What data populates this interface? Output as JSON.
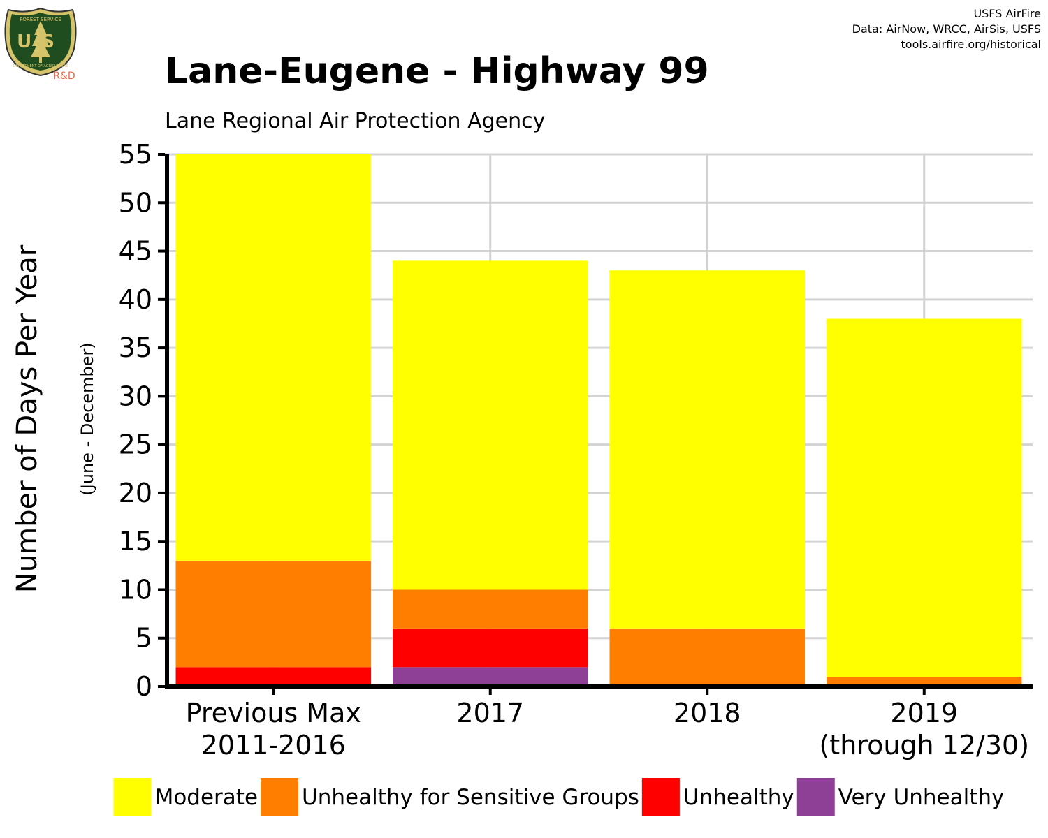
{
  "logo": {
    "text_top": "FOREST SERVICE",
    "text_mid": "US",
    "text_bottom": "DEPARTMENT OF AGRICULTURE",
    "badge": "R&D"
  },
  "credits": {
    "line1": "USFS AirFire",
    "line2": "Data: AirNow, WRCC, AirSis, USFS",
    "line3": "tools.airfire.org/historical"
  },
  "chart_data": {
    "type": "bar",
    "stacked": true,
    "title": "Lane-Eugene - Highway 99",
    "subtitle": "Lane Regional Air Protection Agency",
    "ylabel": "Number of Days Per Year",
    "ylabel_sub": "(June - December)",
    "xlabel": "",
    "ylim": [
      0,
      55
    ],
    "yticks": [
      0,
      5,
      10,
      15,
      20,
      25,
      30,
      35,
      40,
      45,
      50,
      55
    ],
    "grid": true,
    "legend_position": "bottom",
    "categories": [
      [
        "Previous Max",
        "2011-2016"
      ],
      [
        "2017"
      ],
      [
        "2018"
      ],
      [
        "2019",
        "(through 12/30)"
      ]
    ],
    "series": [
      {
        "name": "Very Unhealthy",
        "color": "#8E3F96",
        "values": [
          0,
          2,
          0,
          0
        ]
      },
      {
        "name": "Unhealthy",
        "color": "#FF0000",
        "values": [
          2,
          4,
          0,
          0
        ]
      },
      {
        "name": "Unhealthy for Sensitive Groups",
        "color": "#FF7E00",
        "values": [
          11,
          4,
          6,
          1
        ]
      },
      {
        "name": "Moderate",
        "color": "#FFFF00",
        "values": [
          42,
          34,
          37,
          37
        ]
      }
    ],
    "legend_order": [
      "Moderate",
      "Unhealthy for Sensitive Groups",
      "Unhealthy",
      "Very Unhealthy"
    ]
  }
}
